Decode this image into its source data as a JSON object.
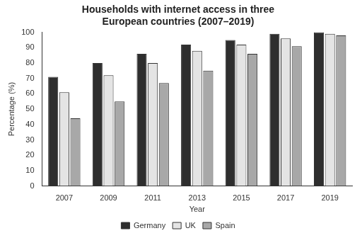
{
  "chart_data": {
    "type": "bar",
    "title": [
      "Households with internet access in three",
      "European countries (2007–2019)"
    ],
    "x_label": "Year",
    "y_label": "Percentage (%)",
    "categories": [
      "2007",
      "2009",
      "2011",
      "2013",
      "2015",
      "2017",
      "2019"
    ],
    "series": [
      {
        "name": "Germany",
        "color": "#2e2e2e",
        "values": [
          71,
          80,
          86,
          92,
          95,
          99,
          100
        ]
      },
      {
        "name": "UK",
        "color": "#e4e4e4",
        "values": [
          61,
          72,
          80,
          88,
          92,
          96,
          99
        ]
      },
      {
        "name": "Spain",
        "color": "#a8a8a8",
        "values": [
          44,
          55,
          67,
          75,
          86,
          91,
          98
        ]
      }
    ],
    "ylim": [
      0,
      100
    ],
    "yticks": [
      0,
      10,
      20,
      30,
      40,
      50,
      60,
      70,
      80,
      90,
      100
    ],
    "grid": false,
    "legend": "bottom"
  }
}
